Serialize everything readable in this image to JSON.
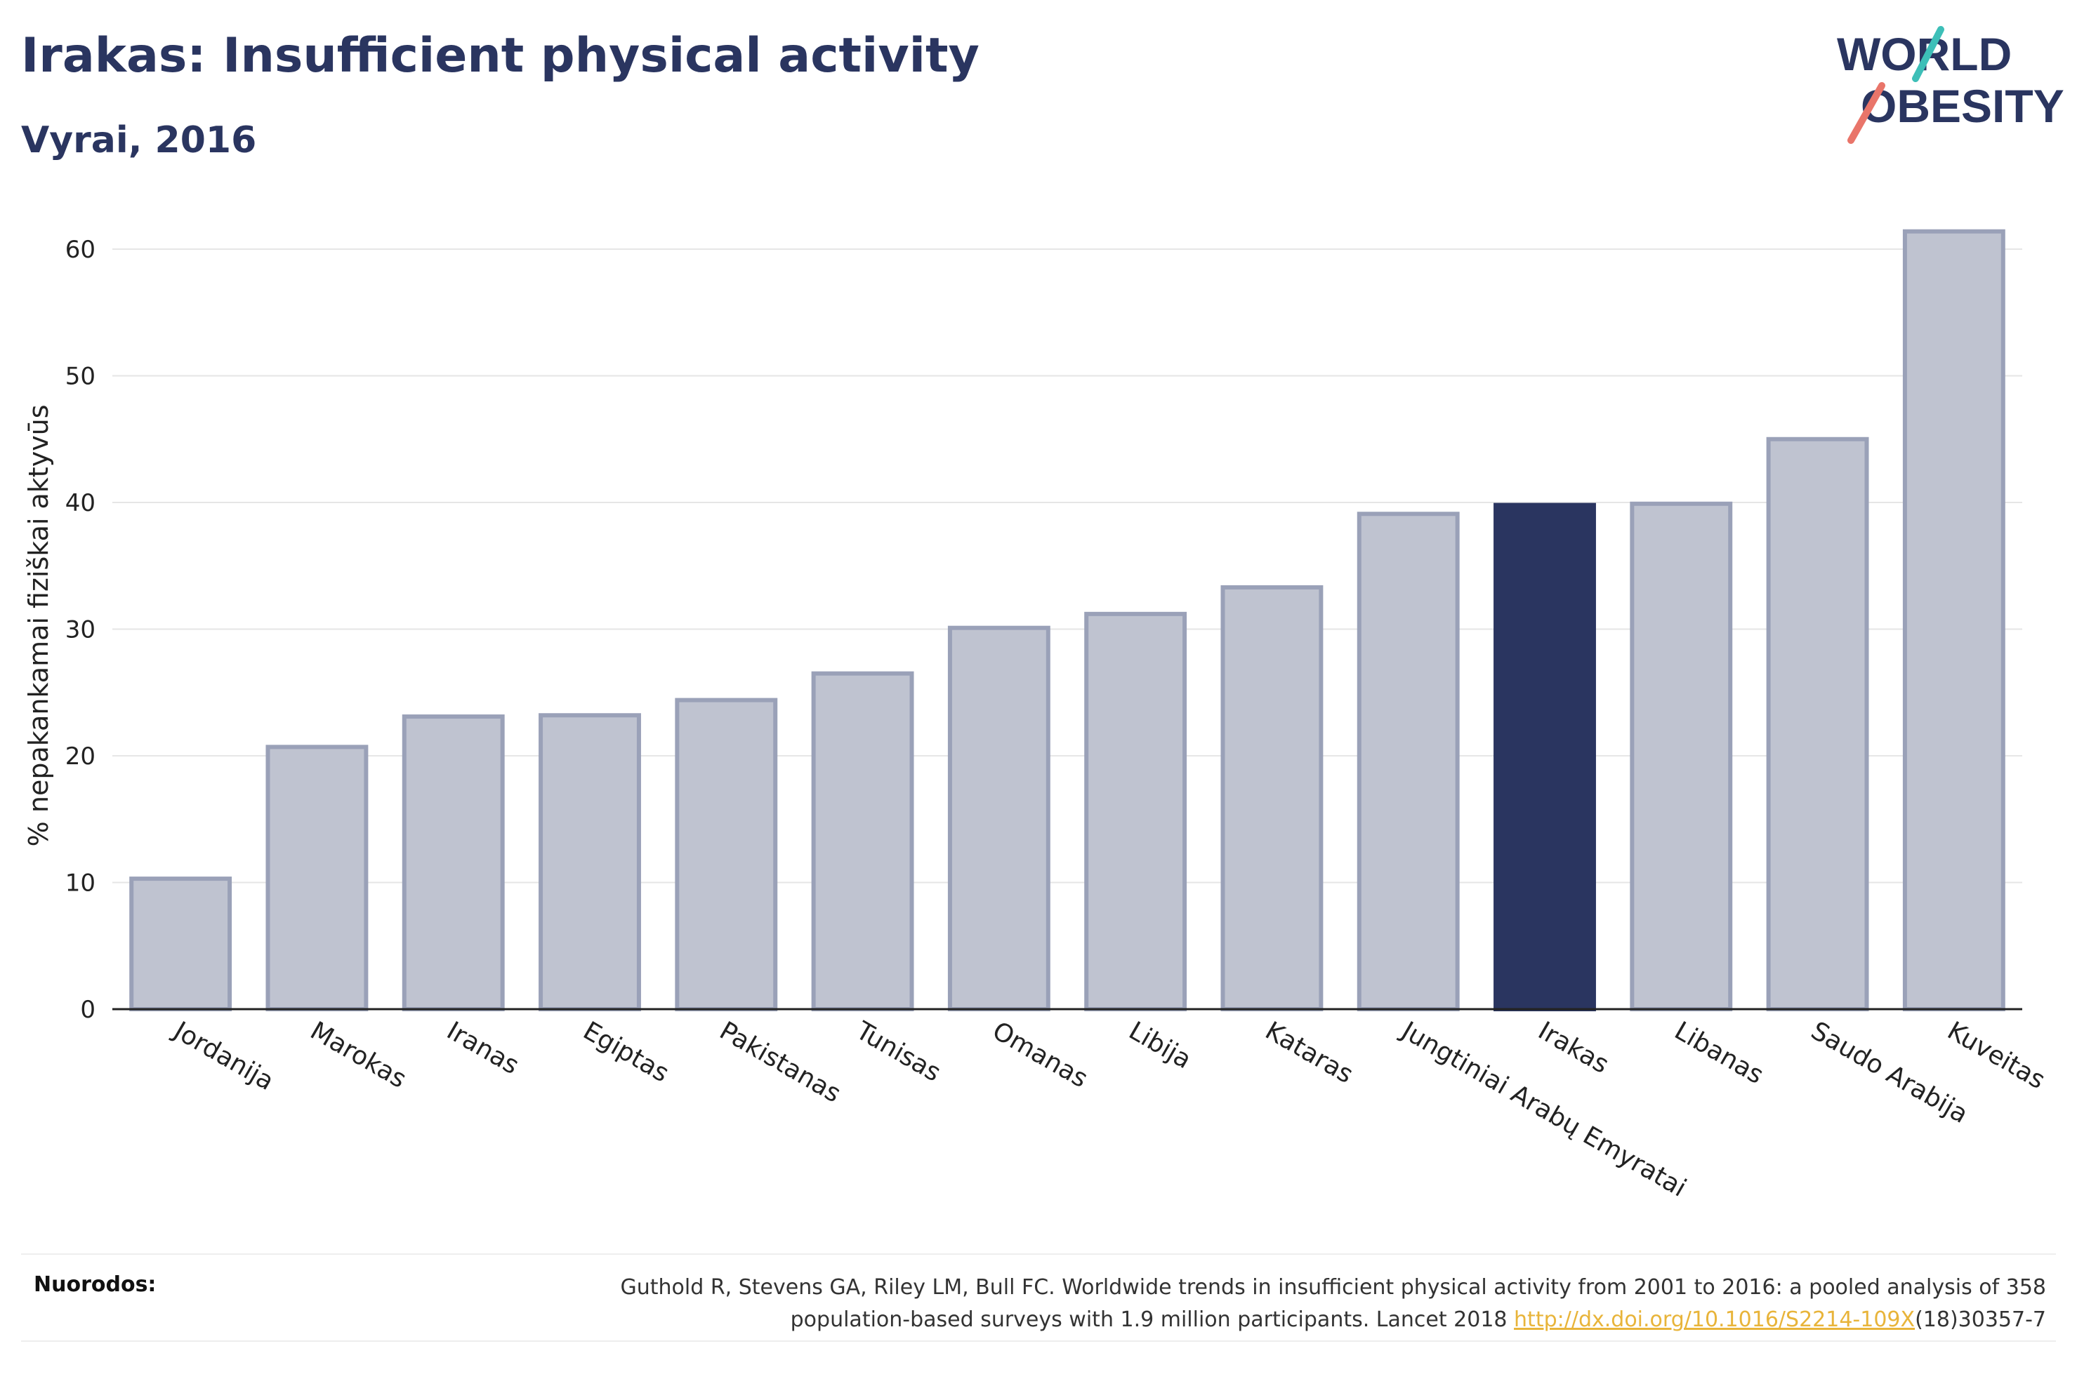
{
  "header": {
    "title": "Irakas: Insufficient physical activity",
    "subtitle": "Vyrai, 2016"
  },
  "logo": {
    "line1": "WORLD",
    "line2": "OBESITY",
    "slash_colors": [
      "#3dbfb8",
      "#e9756a"
    ],
    "text_color": "#2a3560"
  },
  "chart_data": {
    "type": "bar",
    "title": "Irakas: Insufficient physical activity",
    "subtitle": "Vyrai, 2016",
    "xlabel": "",
    "ylabel": "% nepakankamai fiziškai aktyvūs",
    "ylim": [
      0,
      65
    ],
    "yticks": [
      0,
      10,
      20,
      30,
      40,
      50,
      60
    ],
    "grid": true,
    "categories": [
      "Jordanija",
      "Marokas",
      "Iranas",
      "Egiptas",
      "Pakistanas",
      "Tunisas",
      "Omanas",
      "Libija",
      "Kataras",
      "Jungtiniai Arabų Emyratai",
      "Irakas",
      "Libanas",
      "Saudo Arabija",
      "Kuveitas"
    ],
    "values": [
      10.3,
      20.7,
      23.1,
      23.2,
      24.4,
      26.5,
      30.1,
      31.2,
      33.3,
      39.1,
      39.8,
      39.9,
      45.0,
      61.4
    ],
    "highlight": "Irakas",
    "colors": {
      "bar": "#bfc3d0",
      "bar_border": "#9aa1b8",
      "highlight": "#2a3560"
    }
  },
  "footer": {
    "label": "Nuorodos:",
    "ref_line1": "Guthold R, Stevens GA, Riley LM, Bull FC. Worldwide trends in insufficient physical activity from 2001 to 2016: a pooled analysis of 358",
    "ref_line2_pre": "population-based surveys with 1.9 million participants. Lancet 2018 ",
    "ref_link": "http://dx.doi.org/10.1016/S2214-109X",
    "ref_line2_post": "(18)30357-7"
  }
}
